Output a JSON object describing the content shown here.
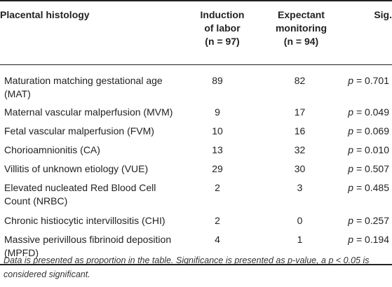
{
  "table": {
    "header": {
      "col0": "Placental histology",
      "col1_line1": "Induction",
      "col1_line2": "of labor",
      "col1_line3": "(n = 97)",
      "col2_line1": "Expectant",
      "col2_line2": "monitoring",
      "col2_line3": "(n = 94)",
      "col3": "Sig."
    },
    "rows": [
      {
        "label": "Maturation matching gestational age (MAT)",
        "induction": "89",
        "expectant": "82",
        "sig": "0.701"
      },
      {
        "label": "Maternal vascular malperfusion (MVM)",
        "induction": "9",
        "expectant": "17",
        "sig": "0.049"
      },
      {
        "label": "Fetal vascular malperfusion (FVM)",
        "induction": "10",
        "expectant": "16",
        "sig": "0.069"
      },
      {
        "label": "Chorioamnionitis (CA)",
        "induction": "13",
        "expectant": "32",
        "sig": "0.010"
      },
      {
        "label": "Villitis of unknown etiology (VUE)",
        "induction": "29",
        "expectant": "30",
        "sig": "0.507"
      },
      {
        "label": "Elevated nucleated Red Blood Cell Count (NRBC)",
        "induction": "2",
        "expectant": "3",
        "sig": "0.485"
      },
      {
        "label": "Chronic histiocytic intervillositis (CHI)",
        "induction": "2",
        "expectant": "0",
        "sig": "0.257"
      },
      {
        "label": "Massive perivillous fibrinoid deposition (MPFD)",
        "induction": "4",
        "expectant": "1",
        "sig": "0.194"
      }
    ],
    "sig_prefix": "p = "
  },
  "footnote": "Data is presented as proportion in the table. Significance is presented as p-value, a p < 0.05 is considered significant."
}
